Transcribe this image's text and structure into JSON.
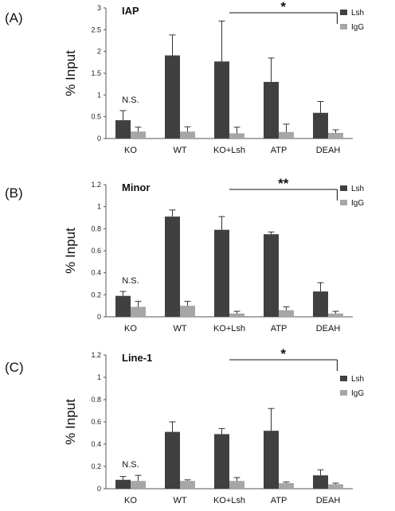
{
  "chart_data": [
    {
      "type": "bar",
      "panel_label": "(A)",
      "title": "IAP",
      "ylabel": "% Input",
      "ylim": [
        0,
        3
      ],
      "yticks": [
        "0",
        "0.5",
        "1",
        "1.5",
        "2",
        "2.5",
        "3"
      ],
      "categories": [
        "KO",
        "WT",
        "KO+Lsh",
        "ATP",
        "DEAH"
      ],
      "series": [
        {
          "name": "Lsh",
          "color": "#404040",
          "values": [
            0.42,
            1.91,
            1.77,
            1.3,
            0.59
          ],
          "errors": [
            0.22,
            0.47,
            0.93,
            0.55,
            0.26
          ]
        },
        {
          "name": "IgG",
          "color": "#a6a6a6",
          "values": [
            0.16,
            0.16,
            0.12,
            0.15,
            0.13
          ],
          "errors": [
            0.1,
            0.11,
            0.14,
            0.18,
            0.07
          ]
        }
      ],
      "annotations": {
        "ns_label": "N.S.",
        "significance": "*",
        "bracket_from": "KO+Lsh",
        "bracket_to": "DEAH"
      },
      "legend_position": "top-right"
    },
    {
      "type": "bar",
      "panel_label": "(B)",
      "title": "Minor",
      "ylabel": "% Input",
      "ylim": [
        0,
        1.2
      ],
      "yticks": [
        "0",
        "0.2",
        "0.4",
        "0.6",
        "0.8",
        "1",
        "1.2"
      ],
      "categories": [
        "KO",
        "WT",
        "KO+Lsh",
        "ATP",
        "DEAH"
      ],
      "series": [
        {
          "name": "Lsh",
          "color": "#404040",
          "values": [
            0.19,
            0.91,
            0.79,
            0.75,
            0.23
          ],
          "errors": [
            0.04,
            0.06,
            0.12,
            0.02,
            0.08
          ]
        },
        {
          "name": "IgG",
          "color": "#a6a6a6",
          "values": [
            0.09,
            0.1,
            0.03,
            0.06,
            0.03
          ],
          "errors": [
            0.05,
            0.04,
            0.02,
            0.03,
            0.02
          ]
        }
      ],
      "annotations": {
        "ns_label": "N.S.",
        "significance": "**",
        "bracket_from": "KO+Lsh",
        "bracket_to": "DEAH"
      },
      "legend_position": "top-right"
    },
    {
      "type": "bar",
      "panel_label": "(C)",
      "title": "Line-1",
      "ylabel": "% Input",
      "ylim": [
        0,
        1.2
      ],
      "yticks": [
        "0",
        "0.2",
        "0.4",
        "0.6",
        "0.8",
        "1",
        "1.2"
      ],
      "categories": [
        "KO",
        "WT",
        "KO+Lsh",
        "ATP",
        "DEAH"
      ],
      "series": [
        {
          "name": "Lsh",
          "color": "#404040",
          "values": [
            0.08,
            0.51,
            0.49,
            0.52,
            0.12
          ],
          "errors": [
            0.03,
            0.09,
            0.05,
            0.2,
            0.05
          ]
        },
        {
          "name": "IgG",
          "color": "#a6a6a6",
          "values": [
            0.07,
            0.07,
            0.07,
            0.05,
            0.04
          ],
          "errors": [
            0.05,
            0.01,
            0.03,
            0.01,
            0.01
          ]
        }
      ],
      "annotations": {
        "ns_label": "N.S.",
        "significance": "*",
        "bracket_from": "KO+Lsh",
        "bracket_to": "DEAH"
      },
      "legend_position": "top-right"
    }
  ]
}
